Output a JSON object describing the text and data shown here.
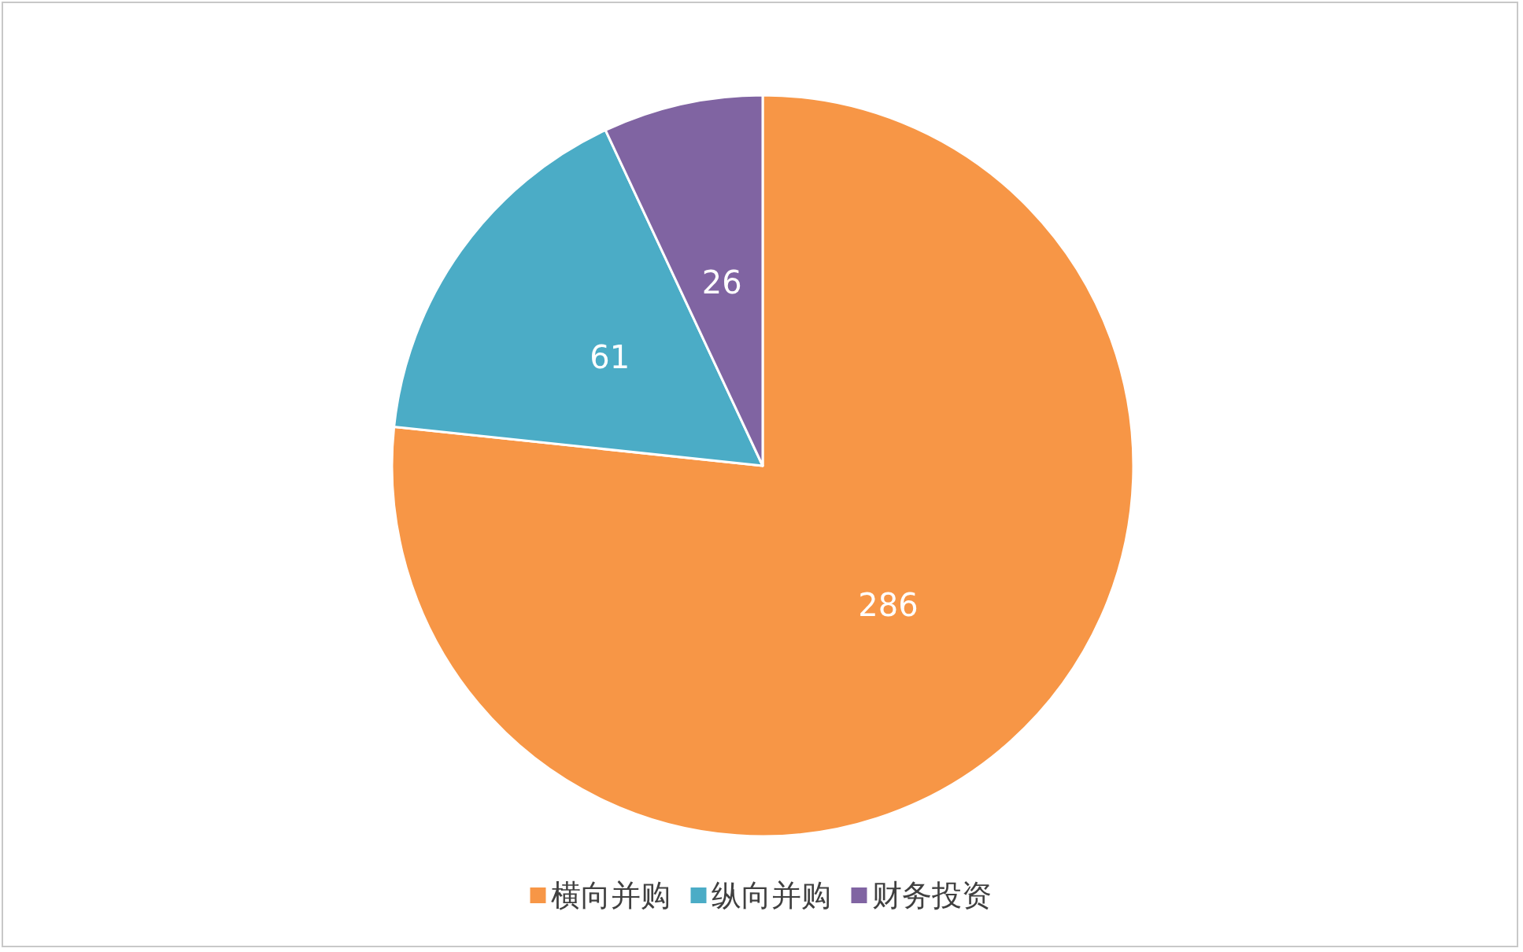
{
  "chart_data": {
    "type": "pie",
    "categories": [
      "横向并购",
      "纵向并购",
      "财务投资"
    ],
    "values": [
      286,
      61,
      26
    ],
    "colors": [
      "#f79646",
      "#4bacc6",
      "#8064a2"
    ],
    "data_labels": true,
    "legend": "bottom"
  }
}
